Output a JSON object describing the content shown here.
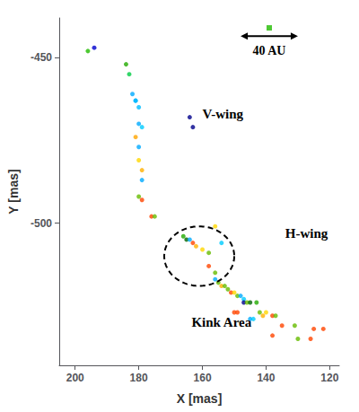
{
  "chart_data": {
    "type": "scatter",
    "xlabel": "X [mas]",
    "ylabel": "Y [mas]",
    "xlim": [
      205,
      117
    ],
    "ylim": [
      -543,
      -438
    ],
    "xticks": [
      200,
      180,
      160,
      140,
      120
    ],
    "yticks": [
      -450,
      -500
    ],
    "grid": false,
    "series": [
      {
        "type": "scatter",
        "marker": "circle",
        "x": [
          194,
          196,
          184,
          183,
          182,
          181,
          181,
          180,
          164,
          163,
          180,
          179,
          181,
          180,
          180,
          179,
          179,
          180,
          179,
          176,
          175,
          166,
          165,
          164,
          163,
          162,
          160,
          158,
          156,
          154,
          158,
          156,
          156,
          155,
          154,
          153,
          152,
          151,
          150,
          149,
          148,
          147,
          147,
          146,
          145,
          143,
          150,
          149,
          142,
          140,
          141,
          138,
          137,
          145,
          144,
          135,
          131,
          125,
          122,
          138,
          130,
          126
        ],
        "values": [
          -447,
          -448,
          -452,
          -455,
          -461,
          -463,
          -463,
          -465,
          -468,
          -471,
          -470,
          -471,
          -474,
          -477,
          -481,
          -484,
          -487,
          -492,
          -493,
          -498,
          -498,
          -504,
          -505,
          -505,
          -506,
          -507,
          -508,
          -509,
          -501,
          -506,
          -513,
          -515,
          -517,
          -518,
          -519,
          -519,
          -520,
          -521,
          -521,
          -522,
          -522,
          -523,
          -524,
          -524,
          -524,
          -524,
          -527,
          -527,
          -527,
          -527,
          -528,
          -528,
          -528,
          -529,
          -529,
          -531,
          -531,
          -532,
          -532,
          -534,
          -535,
          -535
        ],
        "colors": [
          "#0000CD",
          "#22BB00",
          "#22AA00",
          "#00CC44",
          "#00AAFF",
          "#00AAFF",
          "#00BBFF",
          "#00BBFF",
          "#00008B",
          "#00008B",
          "#00AAFF",
          "#00CCFF",
          "#FFA500",
          "#00AAFF",
          "#FFD700",
          "#FFB000",
          "#00AAFF",
          "#66BB00",
          "#FF4500",
          "#FF4500",
          "#66BB00",
          "#22AA00",
          "#006600",
          "#00AAFF",
          "#FF4500",
          "#FFB000",
          "#FFD700",
          "#66BB00",
          "#FFD700",
          "#00CCFF",
          "#FF4500",
          "#66BB00",
          "#00AAFF",
          "#66BB00",
          "#FFB000",
          "#66BB00",
          "#66BB00",
          "#FF4500",
          "#FFD700",
          "#66BB00",
          "#00AAFF",
          "#00CCFF",
          "#00008B",
          "#66BB00",
          "#006600",
          "#22AA00",
          "#FF4500",
          "#FF4500",
          "#66BB00",
          "#FFD700",
          "#FFB000",
          "#FF4500",
          "#66BB00",
          "#00AAFF",
          "#00CCFF",
          "#FF4500",
          "#66BB00",
          "#FF4500",
          "#FF4500",
          "#FF4500",
          "#66BB00",
          "#FF4500"
        ]
      },
      {
        "type": "scatter",
        "marker": "square",
        "color": "#22BB00",
        "x": [
          139
        ],
        "values": [
          -441
        ]
      }
    ],
    "annotations": [
      {
        "text": "V-wing",
        "x": 160,
        "y": -467
      },
      {
        "text": "H-wing",
        "x": 134,
        "y": -503
      }
    ],
    "ellipse": {
      "x": 161,
      "y": -510,
      "width": 22,
      "height": 18,
      "color": "black",
      "label": "Kink Area",
      "label_x": 154,
      "label_y": -528
    },
    "scale_bar": {
      "x1": 148,
      "x2": 130,
      "y": -443.5,
      "color": "black",
      "label": "40 AU",
      "label_x": 139,
      "label_y": -446
    }
  }
}
